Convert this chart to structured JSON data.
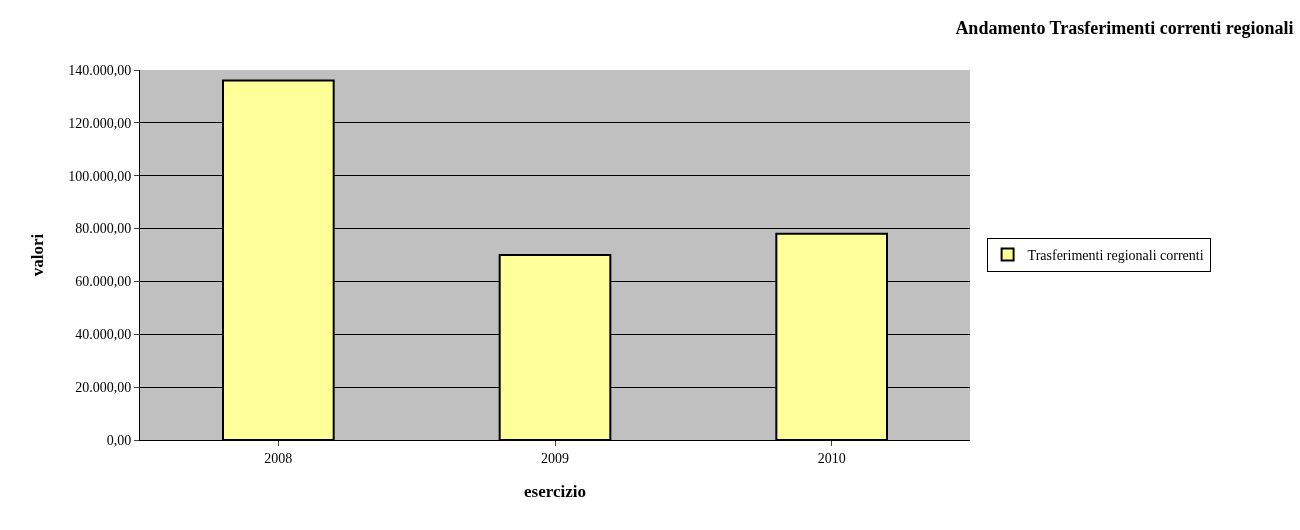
{
  "chart_data": {
    "type": "bar",
    "title": "Andamento Trasferimenti correnti regionali",
    "xlabel": "esercizio",
    "ylabel": "valori",
    "categories": [
      "2008",
      "2009",
      "2010"
    ],
    "series": [
      {
        "name": "Trasferimenti regionali correnti",
        "color": "#ffff99",
        "values": [
          136000,
          70000,
          78000
        ]
      }
    ],
    "ylim": [
      0,
      140000
    ],
    "yticks": [
      {
        "value": 0,
        "label": "0,00"
      },
      {
        "value": 20000,
        "label": "20.000,00"
      },
      {
        "value": 40000,
        "label": "40.000,00"
      },
      {
        "value": 60000,
        "label": "60.000,00"
      },
      {
        "value": 80000,
        "label": "80.000,00"
      },
      {
        "value": 100000,
        "label": "100.000,00"
      },
      {
        "value": 120000,
        "label": "120.000,00"
      },
      {
        "value": 140000,
        "label": "140.000,00"
      }
    ],
    "grid": "y",
    "legend": "right"
  }
}
